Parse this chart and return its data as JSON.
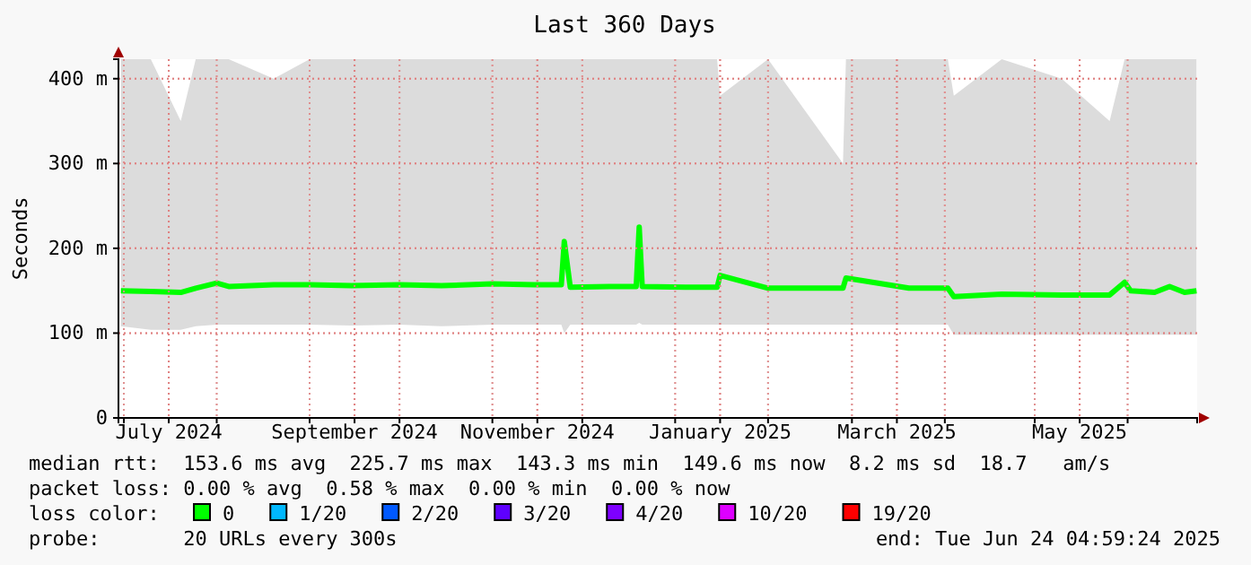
{
  "chart_data": {
    "type": "line",
    "title": "Last 360 Days",
    "ylabel": "Seconds",
    "xlim": [
      "2024-06-29T05:00",
      "2025-06-24T05:00"
    ],
    "xticks": [
      {
        "value": "2024-07-01",
        "label": null
      },
      {
        "value": "2024-07-16",
        "label": "July 2024"
      },
      {
        "value": "2024-08-01",
        "label": null
      },
      {
        "value": "2024-09-01",
        "label": null
      },
      {
        "value": "2024-09-16",
        "label": "September 2024"
      },
      {
        "value": "2024-10-01",
        "label": null
      },
      {
        "value": "2024-11-01",
        "label": null
      },
      {
        "value": "2024-11-16",
        "label": "November 2024"
      },
      {
        "value": "2024-12-01",
        "label": null
      },
      {
        "value": "2025-01-01",
        "label": null
      },
      {
        "value": "2025-01-16",
        "label": "January 2025"
      },
      {
        "value": "2025-02-01",
        "label": null
      },
      {
        "value": "2025-03-01",
        "label": null
      },
      {
        "value": "2025-03-16",
        "label": "March 2025"
      },
      {
        "value": "2025-04-01",
        "label": null
      },
      {
        "value": "2025-05-01",
        "label": null
      },
      {
        "value": "2025-05-16",
        "label": "May 2025"
      },
      {
        "value": "2025-06-01",
        "label": null
      }
    ],
    "ylim": [
      0,
      423
    ],
    "yticks": [
      0,
      {
        "value": 100,
        "label": "100 m"
      },
      {
        "value": 200,
        "label": "200 m"
      },
      {
        "value": 300,
        "label": "300 m"
      },
      {
        "value": 400,
        "label": "400 m"
      }
    ],
    "grid": true,
    "legend": "bottom",
    "legend_title": "loss color:",
    "series": [
      {
        "name": "0",
        "color": "#00ff00",
        "x": [
          "2024-06-30",
          "2024-07-10",
          "2024-07-20",
          "2024-07-25",
          "2024-08-01",
          "2024-08-05",
          "2024-08-20",
          "2024-09-01",
          "2024-09-15",
          "2024-10-01",
          "2024-10-15",
          "2024-11-01",
          "2024-11-15",
          "2024-11-24",
          "2024-11-25",
          "2024-11-27",
          "2024-12-10",
          "2024-12-19",
          "2024-12-20",
          "2024-12-21",
          "2025-01-05",
          "2025-01-15",
          "2025-01-16",
          "2025-02-01",
          "2025-02-26",
          "2025-02-27",
          "2025-03-20",
          "2025-04-02",
          "2025-04-04",
          "2025-04-20",
          "2025-05-10",
          "2025-05-26",
          "2025-05-31",
          "2025-06-02",
          "2025-06-10",
          "2025-06-15",
          "2025-06-20",
          "2025-06-24"
        ],
        "values": [
          150,
          149,
          148,
          153,
          159,
          155,
          157,
          157,
          156,
          157,
          156,
          158,
          157,
          157,
          208,
          154,
          155,
          155,
          225,
          155,
          154,
          154,
          168,
          153,
          153,
          165,
          153,
          153,
          143,
          146,
          145,
          145,
          160,
          150,
          148,
          155,
          148,
          150
        ],
        "lower": [
          108,
          104,
          104,
          108,
          110,
          110,
          110,
          110,
          109,
          110,
          108,
          110,
          110,
          110,
          100,
          110,
          110,
          110,
          112,
          110,
          110,
          110,
          110,
          110,
          110,
          110,
          110,
          110,
          98,
          98,
          98,
          98,
          98,
          98,
          98,
          98,
          98,
          98
        ],
        "upper": [
          423,
          423,
          350,
          423,
          423,
          423,
          400,
          423,
          423,
          423,
          423,
          423,
          423,
          423,
          423,
          423,
          423,
          423,
          423,
          423,
          423,
          423,
          380,
          423,
          300,
          423,
          423,
          423,
          380,
          423,
          400,
          350,
          423,
          423,
          423,
          423,
          423,
          423
        ]
      },
      {
        "name": "1/20",
        "color": "#00b8ff"
      },
      {
        "name": "2/20",
        "color": "#0059ff"
      },
      {
        "name": "3/20",
        "color": "#5e00ff"
      },
      {
        "name": "4/20",
        "color": "#7e00ff"
      },
      {
        "name": "10/20",
        "color": "#dd00ff"
      },
      {
        "name": "19/20",
        "color": "#ff0000"
      }
    ],
    "annotations": [
      "median rtt:  153.6 ms avg  225.7 ms max  143.3 ms min  149.6 ms now  8.2 ms sd  18.7   am/s",
      "packet loss: 0.00 % avg  0.58 % max  0.00 % min  0.00 % now",
      "probe:       20 URLs every 300s",
      "end: Tue Jun 24 04:59:24 2025"
    ]
  }
}
